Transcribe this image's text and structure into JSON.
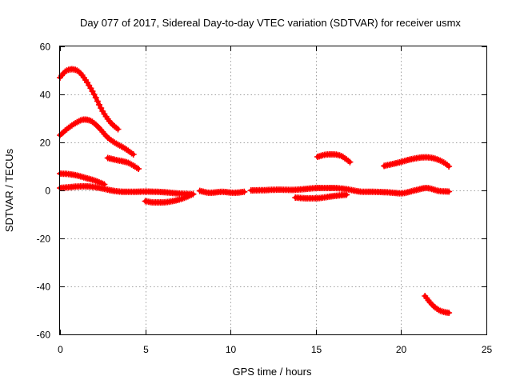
{
  "chart_data": {
    "type": "scatter",
    "title": "Day 077 of 2017, Sidereal Day-to-day VTEC variation (SDTVAR) for receiver usmx",
    "xlabel": "GPS time / hours",
    "ylabel": "SDTVAR / TECUs",
    "xlim": [
      0,
      25
    ],
    "ylim": [
      -60,
      60
    ],
    "xticks": [
      0,
      5,
      10,
      15,
      20,
      25
    ],
    "yticks": [
      -60,
      -40,
      -20,
      0,
      20,
      40,
      60
    ],
    "xtick_labels": [
      "0",
      "5",
      "10",
      "15",
      "20",
      "25"
    ],
    "ytick_labels": [
      "-60",
      "-40",
      "-20",
      "0",
      "20",
      "40",
      "60"
    ],
    "grid": true,
    "marker": "+",
    "color": "#ff0000",
    "series": [
      {
        "name": "arc-1",
        "x": [
          0,
          0.3,
          0.7,
          1.1,
          1.5,
          2.0,
          2.5,
          3.0,
          3.4
        ],
        "y": [
          47,
          49.5,
          50.5,
          49.5,
          46,
          40,
          33,
          28,
          25.5
        ]
      },
      {
        "name": "arc-2",
        "x": [
          0,
          0.4,
          0.9,
          1.4,
          1.8,
          2.3,
          2.8,
          3.3,
          3.8,
          4.3
        ],
        "y": [
          23,
          25.5,
          28,
          29.5,
          29,
          26,
          22,
          19.5,
          17.5,
          15
        ]
      },
      {
        "name": "arc-3",
        "x": [
          2.8,
          3.4,
          4.0,
          4.6
        ],
        "y": [
          13.5,
          12.5,
          11.5,
          9
        ]
      },
      {
        "name": "arc-4",
        "x": [
          0,
          0.5,
          1.0,
          1.5,
          2.0,
          2.6
        ],
        "y": [
          7,
          6.8,
          6.2,
          5.2,
          4.2,
          2.5
        ]
      },
      {
        "name": "arc-5",
        "x": [
          0,
          0.5,
          1.0,
          1.5,
          2.0,
          2.5,
          3.0,
          3.5,
          4.0,
          5.0,
          6.0,
          7.0,
          7.8
        ],
        "y": [
          1,
          1.3,
          1.6,
          1.7,
          1.4,
          0.8,
          0,
          -0.5,
          -0.6,
          -0.5,
          -0.7,
          -1.3,
          -1.6
        ]
      },
      {
        "name": "arc-6",
        "x": [
          5.0,
          5.5,
          6.0,
          6.5,
          7.0,
          7.5,
          7.8
        ],
        "y": [
          -4.5,
          -5,
          -5,
          -4.6,
          -3.8,
          -2.5,
          -1.5
        ]
      },
      {
        "name": "arc-7",
        "x": [
          8.2,
          8.8,
          9.5,
          10.2,
          10.8
        ],
        "y": [
          -0.2,
          -1.0,
          -0.6,
          -1.0,
          -0.6
        ]
      },
      {
        "name": "arc-8",
        "x": [
          11.2,
          12.0,
          12.8,
          13.6,
          14.4,
          15.2,
          16.0,
          16.8,
          17.6,
          18.4,
          19.2,
          20.0,
          20.8,
          21.5,
          22.2,
          22.8
        ],
        "y": [
          0,
          0.1,
          0.3,
          0.2,
          0.6,
          1,
          1,
          0.5,
          -0.5,
          -0.6,
          -0.8,
          -1.2,
          0,
          1,
          -0.2,
          -0.5
        ]
      },
      {
        "name": "arc-9",
        "x": [
          13.8,
          14.5,
          15.2,
          16.0,
          16.8
        ],
        "y": [
          -3,
          -3.3,
          -3.2,
          -2.4,
          -1.8
        ]
      },
      {
        "name": "arc-10",
        "x": [
          15.1,
          15.5,
          16.0,
          16.5,
          17.0
        ],
        "y": [
          14,
          14.8,
          15,
          14.3,
          11.8
        ]
      },
      {
        "name": "arc-11",
        "x": [
          19.0,
          19.8,
          20.6,
          21.4,
          22.0,
          22.6,
          22.8
        ],
        "y": [
          10.2,
          11.5,
          13,
          13.8,
          13.2,
          11.2,
          10
        ]
      },
      {
        "name": "arc-12",
        "x": [
          21.4,
          21.8,
          22.2,
          22.6,
          22.8
        ],
        "y": [
          -44,
          -47.5,
          -49.8,
          -50.8,
          -51
        ]
      }
    ]
  }
}
